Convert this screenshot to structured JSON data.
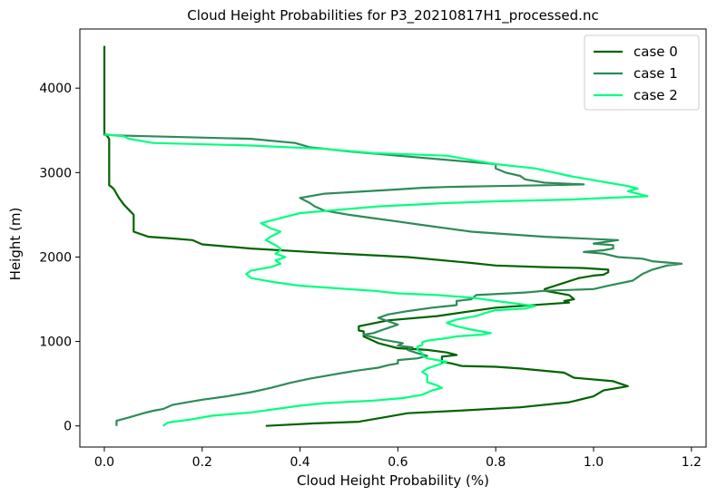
{
  "chart_data": {
    "type": "line",
    "title": "Cloud Height Probabilities for P3_20210817H1_processed.nc",
    "xlabel": "Cloud Height Probability (%)",
    "ylabel": "Height (m)",
    "xlim": [
      -0.05,
      1.23
    ],
    "ylim": [
      -250,
      4700
    ],
    "xticks": [
      0.0,
      0.2,
      0.4,
      0.6,
      0.8,
      1.0,
      1.2
    ],
    "xtick_labels": [
      "0.0",
      "0.2",
      "0.4",
      "0.6",
      "0.8",
      "1.0",
      "1.2"
    ],
    "yticks": [
      0,
      1000,
      2000,
      3000,
      4000
    ],
    "ytick_labels": [
      "0",
      "1000",
      "2000",
      "3000",
      "4000"
    ],
    "grid": false,
    "legend_position": "top-right",
    "series": [
      {
        "name": "case 0",
        "color": "#006400",
        "points": [
          [
            0.33,
            0
          ],
          [
            0.43,
            30
          ],
          [
            0.52,
            50
          ],
          [
            0.57,
            100
          ],
          [
            0.62,
            150
          ],
          [
            0.72,
            180
          ],
          [
            0.85,
            220
          ],
          [
            0.95,
            280
          ],
          [
            1.0,
            350
          ],
          [
            1.02,
            420
          ],
          [
            1.07,
            470
          ],
          [
            1.04,
            530
          ],
          [
            0.96,
            570
          ],
          [
            0.94,
            630
          ],
          [
            0.85,
            680
          ],
          [
            0.8,
            700
          ],
          [
            0.73,
            710
          ],
          [
            0.71,
            740
          ],
          [
            0.69,
            760
          ],
          [
            0.69,
            820
          ],
          [
            0.72,
            840
          ],
          [
            0.7,
            870
          ],
          [
            0.66,
            900
          ],
          [
            0.6,
            920
          ],
          [
            0.56,
            980
          ],
          [
            0.53,
            1060
          ],
          [
            0.53,
            1120
          ],
          [
            0.52,
            1130
          ],
          [
            0.52,
            1180
          ],
          [
            0.58,
            1250
          ],
          [
            0.68,
            1300
          ],
          [
            0.8,
            1400
          ],
          [
            0.95,
            1460
          ],
          [
            0.94,
            1480
          ],
          [
            0.96,
            1500
          ],
          [
            0.95,
            1550
          ],
          [
            0.9,
            1600
          ],
          [
            0.9,
            1620
          ],
          [
            0.97,
            1750
          ],
          [
            1.0,
            1780
          ],
          [
            1.02,
            1790
          ],
          [
            1.03,
            1820
          ],
          [
            1.03,
            1850
          ],
          [
            0.98,
            1870
          ],
          [
            0.9,
            1880
          ],
          [
            0.8,
            1900
          ],
          [
            0.75,
            1930
          ],
          [
            0.62,
            2000
          ],
          [
            0.45,
            2050
          ],
          [
            0.3,
            2100
          ],
          [
            0.2,
            2150
          ],
          [
            0.18,
            2200
          ],
          [
            0.14,
            2220
          ],
          [
            0.09,
            2240
          ],
          [
            0.06,
            2300
          ],
          [
            0.06,
            2500
          ],
          [
            0.05,
            2560
          ],
          [
            0.04,
            2620
          ],
          [
            0.03,
            2700
          ],
          [
            0.02,
            2800
          ],
          [
            0.015,
            2830
          ],
          [
            0.01,
            2850
          ],
          [
            0.01,
            3400
          ],
          [
            0.005,
            3440
          ],
          [
            0.0,
            3450
          ],
          [
            0.0,
            4500
          ]
        ]
      },
      {
        "name": "case 1",
        "color": "#2e8b57",
        "points": [
          [
            0.025,
            0
          ],
          [
            0.025,
            60
          ],
          [
            0.05,
            100
          ],
          [
            0.08,
            150
          ],
          [
            0.1,
            180
          ],
          [
            0.12,
            200
          ],
          [
            0.14,
            250
          ],
          [
            0.17,
            280
          ],
          [
            0.2,
            310
          ],
          [
            0.25,
            350
          ],
          [
            0.3,
            400
          ],
          [
            0.34,
            450
          ],
          [
            0.38,
            510
          ],
          [
            0.42,
            560
          ],
          [
            0.46,
            600
          ],
          [
            0.51,
            650
          ],
          [
            0.56,
            690
          ],
          [
            0.58,
            720
          ],
          [
            0.6,
            740
          ],
          [
            0.6,
            780
          ],
          [
            0.64,
            800
          ],
          [
            0.66,
            830
          ],
          [
            0.64,
            860
          ],
          [
            0.62,
            900
          ],
          [
            0.63,
            930
          ],
          [
            0.6,
            950
          ],
          [
            0.61,
            980
          ],
          [
            0.57,
            1020
          ],
          [
            0.55,
            1050
          ],
          [
            0.53,
            1080
          ],
          [
            0.55,
            1100
          ],
          [
            0.56,
            1120
          ],
          [
            0.57,
            1140
          ],
          [
            0.58,
            1160
          ],
          [
            0.6,
            1200
          ],
          [
            0.58,
            1240
          ],
          [
            0.56,
            1280
          ],
          [
            0.58,
            1320
          ],
          [
            0.62,
            1360
          ],
          [
            0.67,
            1400
          ],
          [
            0.72,
            1430
          ],
          [
            0.72,
            1480
          ],
          [
            0.75,
            1500
          ],
          [
            0.76,
            1550
          ],
          [
            0.86,
            1580
          ],
          [
            0.9,
            1600
          ],
          [
            1.0,
            1620
          ],
          [
            1.03,
            1660
          ],
          [
            1.08,
            1720
          ],
          [
            1.09,
            1760
          ],
          [
            1.1,
            1800
          ],
          [
            1.12,
            1850
          ],
          [
            1.15,
            1900
          ],
          [
            1.18,
            1920
          ],
          [
            1.12,
            1950
          ],
          [
            1.1,
            1980
          ],
          [
            1.05,
            2000
          ],
          [
            1.02,
            2040
          ],
          [
            0.98,
            2060
          ],
          [
            1.02,
            2080
          ],
          [
            1.04,
            2100
          ],
          [
            1.04,
            2140
          ],
          [
            1.0,
            2160
          ],
          [
            1.05,
            2200
          ],
          [
            0.9,
            2240
          ],
          [
            0.8,
            2280
          ],
          [
            0.75,
            2300
          ],
          [
            0.7,
            2340
          ],
          [
            0.65,
            2380
          ],
          [
            0.6,
            2420
          ],
          [
            0.55,
            2460
          ],
          [
            0.5,
            2500
          ],
          [
            0.45,
            2550
          ],
          [
            0.43,
            2600
          ],
          [
            0.42,
            2640
          ],
          [
            0.4,
            2700
          ],
          [
            0.45,
            2750
          ],
          [
            0.6,
            2800
          ],
          [
            0.65,
            2820
          ],
          [
            0.7,
            2830
          ],
          [
            0.8,
            2840
          ],
          [
            0.9,
            2850
          ],
          [
            0.98,
            2860
          ],
          [
            0.9,
            2880
          ],
          [
            0.86,
            2920
          ],
          [
            0.85,
            2960
          ],
          [
            0.82,
            3000
          ],
          [
            0.8,
            3050
          ],
          [
            0.8,
            3100
          ],
          [
            0.76,
            3120
          ],
          [
            0.6,
            3200
          ],
          [
            0.5,
            3250
          ],
          [
            0.42,
            3300
          ],
          [
            0.39,
            3350
          ],
          [
            0.3,
            3400
          ],
          [
            0.02,
            3440
          ],
          [
            0.005,
            3450
          ],
          [
            0.0,
            3460
          ]
        ]
      },
      {
        "name": "case 2",
        "color": "#00ff7f",
        "points": [
          [
            0.12,
            0
          ],
          [
            0.13,
            40
          ],
          [
            0.18,
            80
          ],
          [
            0.22,
            120
          ],
          [
            0.3,
            160
          ],
          [
            0.35,
            200
          ],
          [
            0.4,
            240
          ],
          [
            0.45,
            270
          ],
          [
            0.55,
            300
          ],
          [
            0.61,
            330
          ],
          [
            0.65,
            370
          ],
          [
            0.67,
            420
          ],
          [
            0.69,
            450
          ],
          [
            0.68,
            480
          ],
          [
            0.67,
            500
          ],
          [
            0.66,
            520
          ],
          [
            0.66,
            560
          ],
          [
            0.66,
            600
          ],
          [
            0.65,
            640
          ],
          [
            0.66,
            680
          ],
          [
            0.68,
            720
          ],
          [
            0.7,
            760
          ],
          [
            0.66,
            800
          ],
          [
            0.65,
            830
          ],
          [
            0.65,
            860
          ],
          [
            0.64,
            900
          ],
          [
            0.64,
            940
          ],
          [
            0.65,
            960
          ],
          [
            0.65,
            990
          ],
          [
            0.66,
            1010
          ],
          [
            0.7,
            1040
          ],
          [
            0.72,
            1060
          ],
          [
            0.77,
            1080
          ],
          [
            0.79,
            1100
          ],
          [
            0.75,
            1140
          ],
          [
            0.72,
            1180
          ],
          [
            0.7,
            1220
          ],
          [
            0.72,
            1260
          ],
          [
            0.76,
            1300
          ],
          [
            0.78,
            1340
          ],
          [
            0.8,
            1370
          ],
          [
            0.86,
            1390
          ],
          [
            0.88,
            1420
          ],
          [
            0.84,
            1450
          ],
          [
            0.8,
            1480
          ],
          [
            0.75,
            1520
          ],
          [
            0.68,
            1550
          ],
          [
            0.6,
            1570
          ],
          [
            0.55,
            1600
          ],
          [
            0.45,
            1640
          ],
          [
            0.4,
            1660
          ],
          [
            0.35,
            1700
          ],
          [
            0.3,
            1750
          ],
          [
            0.29,
            1800
          ],
          [
            0.3,
            1840
          ],
          [
            0.34,
            1880
          ],
          [
            0.36,
            1920
          ],
          [
            0.35,
            1960
          ],
          [
            0.37,
            2000
          ],
          [
            0.35,
            2040
          ],
          [
            0.36,
            2080
          ],
          [
            0.36,
            2100
          ],
          [
            0.35,
            2140
          ],
          [
            0.33,
            2200
          ],
          [
            0.34,
            2240
          ],
          [
            0.36,
            2300
          ],
          [
            0.34,
            2340
          ],
          [
            0.32,
            2400
          ],
          [
            0.36,
            2460
          ],
          [
            0.4,
            2520
          ],
          [
            0.48,
            2560
          ],
          [
            0.56,
            2600
          ],
          [
            0.7,
            2640
          ],
          [
            0.8,
            2660
          ],
          [
            0.95,
            2680
          ],
          [
            1.11,
            2720
          ],
          [
            1.09,
            2750
          ],
          [
            1.07,
            2780
          ],
          [
            1.09,
            2810
          ],
          [
            1.07,
            2840
          ],
          [
            1.03,
            2880
          ],
          [
            1.0,
            2910
          ],
          [
            0.95,
            2960
          ],
          [
            0.92,
            3000
          ],
          [
            0.88,
            3050
          ],
          [
            0.8,
            3100
          ],
          [
            0.75,
            3150
          ],
          [
            0.7,
            3200
          ],
          [
            0.55,
            3230
          ],
          [
            0.45,
            3280
          ],
          [
            0.3,
            3320
          ],
          [
            0.1,
            3350
          ],
          [
            0.05,
            3400
          ],
          [
            0.04,
            3430
          ],
          [
            0.0,
            3450
          ]
        ]
      }
    ]
  }
}
